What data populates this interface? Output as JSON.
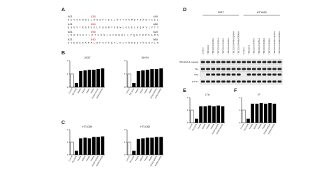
{
  "panels": [
    "A",
    "B",
    "C",
    "D",
    "E",
    "F"
  ],
  "sequence": {
    "lines": [
      {
        "start": "401",
        "mark": "435",
        "end": "440",
        "text": "GEVSKNWLLDSSPYELLRYYAAMEPSRWTEEL"
      },
      {
        "start": "441",
        "mark": "454",
        "end": "480",
        "text": "QSVVTRSPEELFAGRYSNWLKEELAQRVLPTY"
      },
      {
        "start": "481",
        "mark": "496",
        "end": "520",
        "text": "LKRDEHFLDTEHSLAIKWNLLPQGVRPSAMS"
      },
      {
        "start": "521",
        "mark": "540",
        "end": "560",
        "text": "EVEWKSARMLDPSVFQVLHLPRAEEYKGNVLA"
      }
    ]
  },
  "blot": {
    "groups": [
      "293T",
      "HT1080"
    ],
    "rows": [
      "TBC1D16 & mutants",
      "Tau",
      "Flag",
      "β-actin"
    ],
    "lanes": [
      "Control",
      "TBC1D16",
      "TBC1D16 R440A",
      "TBC1D16 Q454A",
      "TBC1D16 R496A",
      "TBC1D16 R540A",
      "TBC1D16 R440A Q454A",
      "TBC1D16 R496A R540A",
      "Control",
      "TBC1D16",
      "TBC1D16 R440A",
      "TBC1D16 Q454A",
      "TBC1D16 R496A",
      "TBC1D16 R540A",
      "TBC1D16 R440A Q454A",
      "TBC1D16 R496A R540A"
    ]
  },
  "chart_data": [
    {
      "type": "bar",
      "title": "293T",
      "categories": [
        "Control",
        "TBC1D16",
        "R440A",
        "Q454A",
        "R496A",
        "R540A",
        "R440A Q454A",
        "R496A R540A"
      ],
      "values": [
        1.0,
        0.3,
        1.2,
        1.25,
        1.3,
        1.3,
        1.35,
        1.4
      ],
      "colors": [
        "#ffffff",
        "#000000",
        "#000000",
        "#000000",
        "#000000",
        "#000000",
        "#000000",
        "#000000"
      ],
      "ylim": [
        0,
        2
      ],
      "yticks": [
        0,
        1,
        2
      ]
    },
    {
      "type": "bar",
      "title": "SHSY",
      "categories": [
        "Control",
        "TBC1D16",
        "R440A",
        "Q454A",
        "R496A",
        "R540A",
        "R440A Q454A",
        "R496A R540A"
      ],
      "values": [
        1.0,
        0.3,
        1.2,
        1.25,
        1.3,
        1.35,
        1.35,
        1.4
      ],
      "colors": [
        "#ffffff",
        "#000000",
        "#000000",
        "#000000",
        "#000000",
        "#000000",
        "#000000",
        "#000000"
      ],
      "ylim": [
        0,
        2
      ],
      "yticks": [
        0,
        1,
        2
      ]
    },
    {
      "type": "bar",
      "title": "HT1080",
      "categories": [
        "Control",
        "TBC1D16",
        "R440A",
        "Q454A",
        "R496A",
        "R540A",
        "R440A Q454A",
        "R496A R540A"
      ],
      "values": [
        1.0,
        0.3,
        1.3,
        1.35,
        1.3,
        1.4,
        1.4,
        1.45
      ],
      "colors": [
        "#ffffff",
        "#000000",
        "#000000",
        "#000000",
        "#000000",
        "#000000",
        "#000000",
        "#000000"
      ],
      "ylim": [
        0,
        2
      ],
      "yticks": [
        0,
        1,
        2
      ]
    },
    {
      "type": "bar",
      "title": "HT1080",
      "categories": [
        "Control",
        "TBC1D16",
        "R440A",
        "Q454A",
        "R496A",
        "R540A",
        "R440A Q454A",
        "R496A R540A"
      ],
      "values": [
        1.0,
        0.3,
        1.25,
        1.3,
        1.35,
        1.35,
        1.4,
        1.4
      ],
      "colors": [
        "#ffffff",
        "#000000",
        "#000000",
        "#000000",
        "#000000",
        "#000000",
        "#000000",
        "#000000"
      ],
      "ylim": [
        0,
        2
      ],
      "yticks": [
        0,
        1,
        2
      ]
    },
    {
      "type": "bar",
      "title": "LTA",
      "categories": [
        "Control",
        "TBC1D16",
        "R440A",
        "Q454A",
        "R496A",
        "R540A",
        "R440A Q454A",
        "R496A R540A"
      ],
      "values": [
        1.0,
        0.3,
        1.3,
        1.3,
        1.35,
        1.3,
        1.35,
        1.3
      ],
      "colors": [
        "#ffffff",
        "#000000",
        "#000000",
        "#000000",
        "#000000",
        "#000000",
        "#000000",
        "#000000"
      ],
      "ylim": [
        0,
        2
      ],
      "yticks": [
        0,
        1,
        2
      ]
    },
    {
      "type": "bar",
      "title": "IF",
      "categories": [
        "Control",
        "TBC1D16",
        "R440A",
        "Q454A",
        "R496A",
        "R540A",
        "R440A Q454A",
        "R496A R540A"
      ],
      "values": [
        1.0,
        0.3,
        1.5,
        1.5,
        1.55,
        1.5,
        1.55,
        1.5
      ],
      "colors": [
        "#ffffff",
        "#000000",
        "#000000",
        "#000000",
        "#000000",
        "#000000",
        "#000000",
        "#000000"
      ],
      "ylim": [
        0,
        2
      ],
      "yticks": [
        0,
        1,
        2
      ]
    }
  ]
}
